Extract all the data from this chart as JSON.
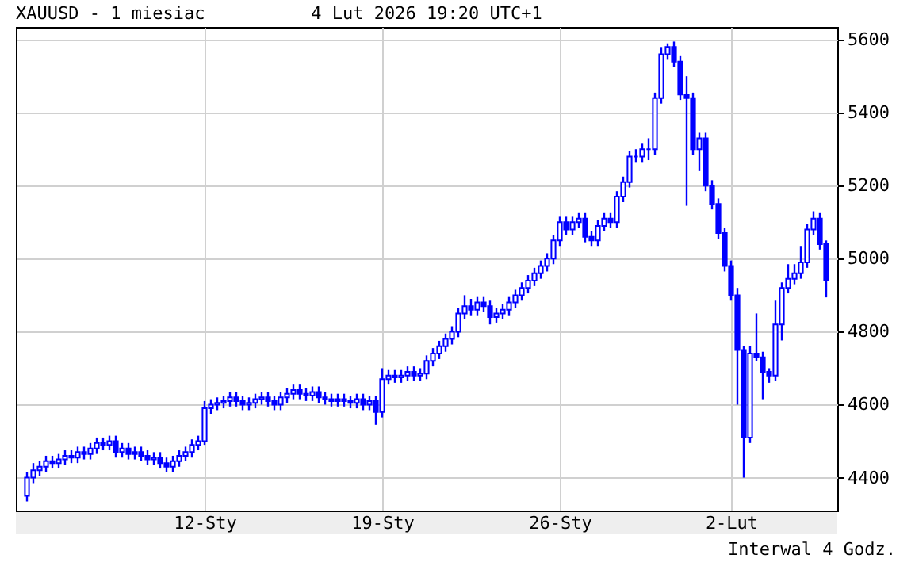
{
  "chart_data": {
    "type": "candlestick",
    "title": "XAUUSD - 1 miesiac",
    "subtitle": "4 Lut 2026 19:20 UTC+1",
    "annotations": [
      "Interwal 4 Godz."
    ],
    "color": "#0000ff",
    "grid": true,
    "categories": [
      null,
      null,
      null,
      null,
      null,
      null,
      null,
      null,
      null,
      null,
      null,
      null,
      null,
      null,
      null,
      null,
      null,
      null,
      null,
      null,
      null,
      null,
      null,
      null,
      null,
      null,
      null,
      null,
      "12-Sty",
      null,
      null,
      null,
      null,
      null,
      null,
      null,
      null,
      null,
      null,
      null,
      null,
      null,
      null,
      null,
      null,
      null,
      null,
      null,
      null,
      null,
      null,
      null,
      null,
      null,
      null,
      null,
      "19-Sty",
      null,
      null,
      null,
      null,
      null,
      null,
      null,
      null,
      null,
      null,
      null,
      null,
      null,
      null,
      null,
      null,
      null,
      null,
      null,
      null,
      null,
      null,
      null,
      null,
      null,
      null,
      null,
      "26-Sty",
      null,
      null,
      null,
      null,
      null,
      null,
      null,
      null,
      null,
      null,
      null,
      null,
      null,
      null,
      null,
      null,
      null,
      null,
      null,
      null,
      null,
      null,
      null,
      null,
      null,
      null,
      "2-Lut",
      null,
      null,
      null,
      null,
      null,
      null,
      null,
      null,
      null,
      null,
      null,
      null,
      null,
      null,
      null
    ],
    "ylim": [
      4310,
      5635
    ],
    "yticks": [
      4400,
      4600,
      4800,
      5000,
      5200,
      5400,
      5600
    ],
    "ohlc": [
      [
        4350,
        4415,
        4335,
        4400
      ],
      [
        4400,
        4440,
        4385,
        4420
      ],
      [
        4420,
        4445,
        4405,
        4430
      ],
      [
        4430,
        4460,
        4415,
        4445
      ],
      [
        4445,
        4460,
        4425,
        4440
      ],
      [
        4440,
        4465,
        4425,
        4450
      ],
      [
        4450,
        4475,
        4435,
        4460
      ],
      [
        4460,
        4475,
        4440,
        4455
      ],
      [
        4455,
        4485,
        4440,
        4470
      ],
      [
        4470,
        4485,
        4450,
        4465
      ],
      [
        4465,
        4495,
        4450,
        4480
      ],
      [
        4480,
        4510,
        4465,
        4495
      ],
      [
        4495,
        4510,
        4475,
        4490
      ],
      [
        4490,
        4515,
        4475,
        4500
      ],
      [
        4500,
        4515,
        4455,
        4470
      ],
      [
        4470,
        4495,
        4455,
        4480
      ],
      [
        4480,
        4495,
        4450,
        4465
      ],
      [
        4465,
        4485,
        4450,
        4470
      ],
      [
        4470,
        4485,
        4445,
        4460
      ],
      [
        4460,
        4475,
        4435,
        4450
      ],
      [
        4450,
        4470,
        4435,
        4455
      ],
      [
        4455,
        4470,
        4425,
        4440
      ],
      [
        4440,
        4455,
        4415,
        4430
      ],
      [
        4430,
        4460,
        4415,
        4445
      ],
      [
        4445,
        4475,
        4430,
        4460
      ],
      [
        4460,
        4485,
        4445,
        4470
      ],
      [
        4470,
        4505,
        4455,
        4490
      ],
      [
        4490,
        4515,
        4475,
        4500
      ],
      [
        4500,
        4610,
        4490,
        4590
      ],
      [
        4590,
        4615,
        4575,
        4600
      ],
      [
        4600,
        4620,
        4585,
        4605
      ],
      [
        4605,
        4625,
        4590,
        4610
      ],
      [
        4610,
        4635,
        4595,
        4620
      ],
      [
        4620,
        4635,
        4595,
        4610
      ],
      [
        4610,
        4625,
        4585,
        4600
      ],
      [
        4600,
        4620,
        4585,
        4605
      ],
      [
        4605,
        4630,
        4590,
        4615
      ],
      [
        4615,
        4635,
        4600,
        4620
      ],
      [
        4620,
        4635,
        4595,
        4610
      ],
      [
        4610,
        4625,
        4585,
        4600
      ],
      [
        4600,
        4635,
        4585,
        4620
      ],
      [
        4620,
        4645,
        4605,
        4630
      ],
      [
        4630,
        4655,
        4615,
        4640
      ],
      [
        4640,
        4655,
        4615,
        4630
      ],
      [
        4630,
        4645,
        4610,
        4625
      ],
      [
        4625,
        4650,
        4610,
        4635
      ],
      [
        4635,
        4650,
        4605,
        4620
      ],
      [
        4620,
        4635,
        4600,
        4615
      ],
      [
        4615,
        4630,
        4595,
        4610
      ],
      [
        4610,
        4630,
        4595,
        4615
      ],
      [
        4615,
        4630,
        4595,
        4610
      ],
      [
        4610,
        4625,
        4590,
        4605
      ],
      [
        4605,
        4630,
        4590,
        4615
      ],
      [
        4615,
        4630,
        4585,
        4600
      ],
      [
        4600,
        4625,
        4585,
        4610
      ],
      [
        4610,
        4625,
        4545,
        4580
      ],
      [
        4580,
        4700,
        4565,
        4670
      ],
      [
        4670,
        4695,
        4655,
        4680
      ],
      [
        4680,
        4695,
        4660,
        4675
      ],
      [
        4675,
        4695,
        4660,
        4680
      ],
      [
        4680,
        4705,
        4665,
        4690
      ],
      [
        4690,
        4705,
        4665,
        4680
      ],
      [
        4680,
        4700,
        4665,
        4685
      ],
      [
        4685,
        4735,
        4670,
        4720
      ],
      [
        4720,
        4755,
        4705,
        4740
      ],
      [
        4740,
        4775,
        4725,
        4760
      ],
      [
        4760,
        4795,
        4745,
        4780
      ],
      [
        4780,
        4815,
        4765,
        4800
      ],
      [
        4800,
        4865,
        4785,
        4850
      ],
      [
        4850,
        4900,
        4835,
        4870
      ],
      [
        4870,
        4890,
        4845,
        4860
      ],
      [
        4860,
        4895,
        4845,
        4880
      ],
      [
        4880,
        4895,
        4855,
        4870
      ],
      [
        4870,
        4885,
        4820,
        4840
      ],
      [
        4840,
        4865,
        4825,
        4850
      ],
      [
        4850,
        4875,
        4835,
        4860
      ],
      [
        4860,
        4895,
        4845,
        4880
      ],
      [
        4880,
        4915,
        4865,
        4900
      ],
      [
        4900,
        4935,
        4885,
        4920
      ],
      [
        4920,
        4955,
        4905,
        4940
      ],
      [
        4940,
        4975,
        4925,
        4960
      ],
      [
        4960,
        4995,
        4945,
        4980
      ],
      [
        4980,
        5015,
        4965,
        5000
      ],
      [
        5000,
        5065,
        4985,
        5050
      ],
      [
        5050,
        5115,
        5035,
        5100
      ],
      [
        5100,
        5115,
        5065,
        5080
      ],
      [
        5080,
        5115,
        5065,
        5100
      ],
      [
        5100,
        5125,
        5085,
        5110
      ],
      [
        5110,
        5125,
        5045,
        5060
      ],
      [
        5060,
        5075,
        5035,
        5050
      ],
      [
        5050,
        5105,
        5035,
        5090
      ],
      [
        5090,
        5125,
        5075,
        5110
      ],
      [
        5110,
        5125,
        5085,
        5100
      ],
      [
        5100,
        5185,
        5085,
        5170
      ],
      [
        5170,
        5225,
        5155,
        5210
      ],
      [
        5210,
        5295,
        5195,
        5280
      ],
      [
        5280,
        5300,
        5265,
        5280
      ],
      [
        5280,
        5315,
        5265,
        5300
      ],
      [
        5300,
        5330,
        5270,
        5300
      ],
      [
        5300,
        5455,
        5285,
        5440
      ],
      [
        5440,
        5580,
        5425,
        5560
      ],
      [
        5560,
        5590,
        5545,
        5580
      ],
      [
        5580,
        5595,
        5525,
        5540
      ],
      [
        5540,
        5555,
        5435,
        5450
      ],
      [
        5450,
        5500,
        5145,
        5440
      ],
      [
        5440,
        5455,
        5285,
        5300
      ],
      [
        5300,
        5345,
        5240,
        5330
      ],
      [
        5330,
        5345,
        5185,
        5200
      ],
      [
        5200,
        5215,
        5135,
        5150
      ],
      [
        5150,
        5165,
        5055,
        5070
      ],
      [
        5070,
        5085,
        4965,
        4980
      ],
      [
        4980,
        4995,
        4885,
        4900
      ],
      [
        4900,
        4920,
        4600,
        4750
      ],
      [
        4750,
        4760,
        4400,
        4510
      ],
      [
        4510,
        4760,
        4495,
        4740
      ],
      [
        4740,
        4850,
        4720,
        4730
      ],
      [
        4730,
        4745,
        4615,
        4690
      ],
      [
        4690,
        4700,
        4660,
        4680
      ],
      [
        4680,
        4885,
        4665,
        4820
      ],
      [
        4820,
        4935,
        4776,
        4920
      ],
      [
        4920,
        4985,
        4905,
        4945
      ],
      [
        4945,
        4985,
        4930,
        4960
      ],
      [
        4960,
        5035,
        4945,
        4990
      ],
      [
        4990,
        5095,
        4975,
        5080
      ],
      [
        5080,
        5130,
        5065,
        5110
      ],
      [
        5110,
        5125,
        5025,
        5040
      ],
      [
        5040,
        5050,
        4894,
        4940
      ]
    ]
  }
}
